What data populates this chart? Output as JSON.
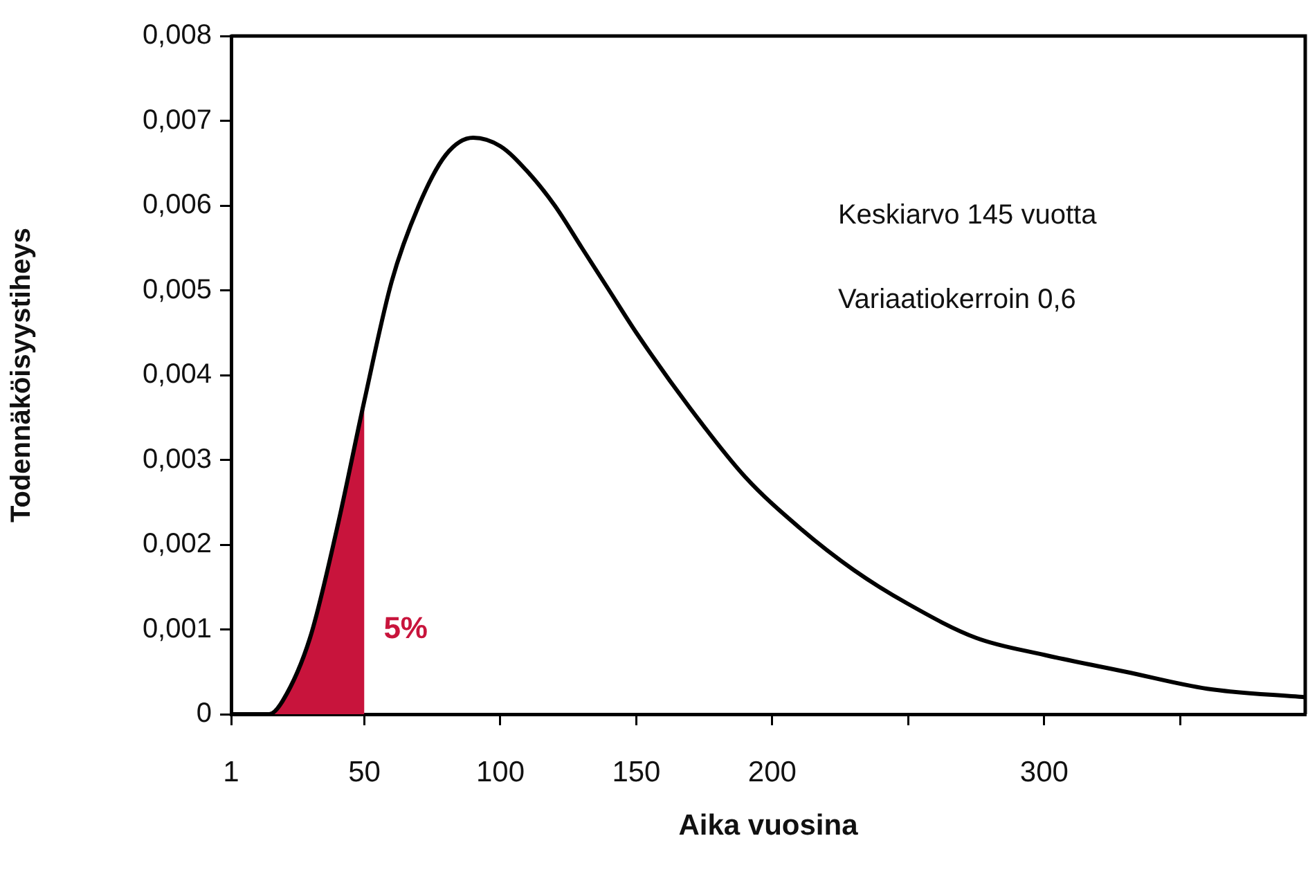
{
  "chart_data": {
    "type": "line",
    "xlabel": "Aika vuosina",
    "ylabel": "Todennäköisyystiheys",
    "xlim": [
      1,
      396
    ],
    "ylim": [
      0,
      0.008
    ],
    "xticks": [
      1,
      50,
      100,
      150,
      200,
      {
        "value": 250,
        "label": null
      },
      300,
      {
        "value": 350,
        "label": null
      }
    ],
    "yticks": [
      0,
      {
        "value": 0.001,
        "label": "0,001"
      },
      {
        "value": 0.002,
        "label": "0,002"
      },
      {
        "value": 0.003,
        "label": "0,003"
      },
      {
        "value": 0.004,
        "label": "0,004"
      },
      {
        "value": 0.005,
        "label": "0,005"
      },
      {
        "value": 0.006,
        "label": "0,006"
      },
      {
        "value": 0.007,
        "label": "0,007"
      },
      {
        "value": 0.008,
        "label": "0,008"
      }
    ],
    "series": [
      {
        "color": "#000000",
        "x": [
          1,
          10,
          15,
          20,
          30,
          40,
          50,
          60,
          70,
          80,
          90,
          100,
          110,
          120,
          130,
          140,
          150,
          170,
          190,
          210,
          230,
          250,
          275,
          300,
          330,
          360,
          396
        ],
        "values": [
          0,
          0,
          0,
          0.00016,
          0.0009,
          0.0022,
          0.0037,
          0.0051,
          0.006,
          0.0066,
          0.0068,
          0.0067,
          0.0064,
          0.006,
          0.0055,
          0.005,
          0.0045,
          0.0036,
          0.0028,
          0.0022,
          0.0017,
          0.0013,
          0.0009,
          0.0007,
          0.0005,
          0.0003,
          0.0002
        ]
      },
      {
        "type": "area",
        "color": "#c8143c",
        "x": [
          1,
          10,
          15,
          20,
          30,
          40,
          50
        ],
        "values": [
          0,
          0,
          0,
          0.0002,
          0.0009,
          0.0022,
          0.0037
        ]
      }
    ],
    "annotations": [
      "Keskiarvo 145 vuotta",
      "Variaatiokerroin 0,6",
      "5%"
    ],
    "grid": false,
    "legend": false,
    "marker": "none",
    "line_style": "solid"
  }
}
